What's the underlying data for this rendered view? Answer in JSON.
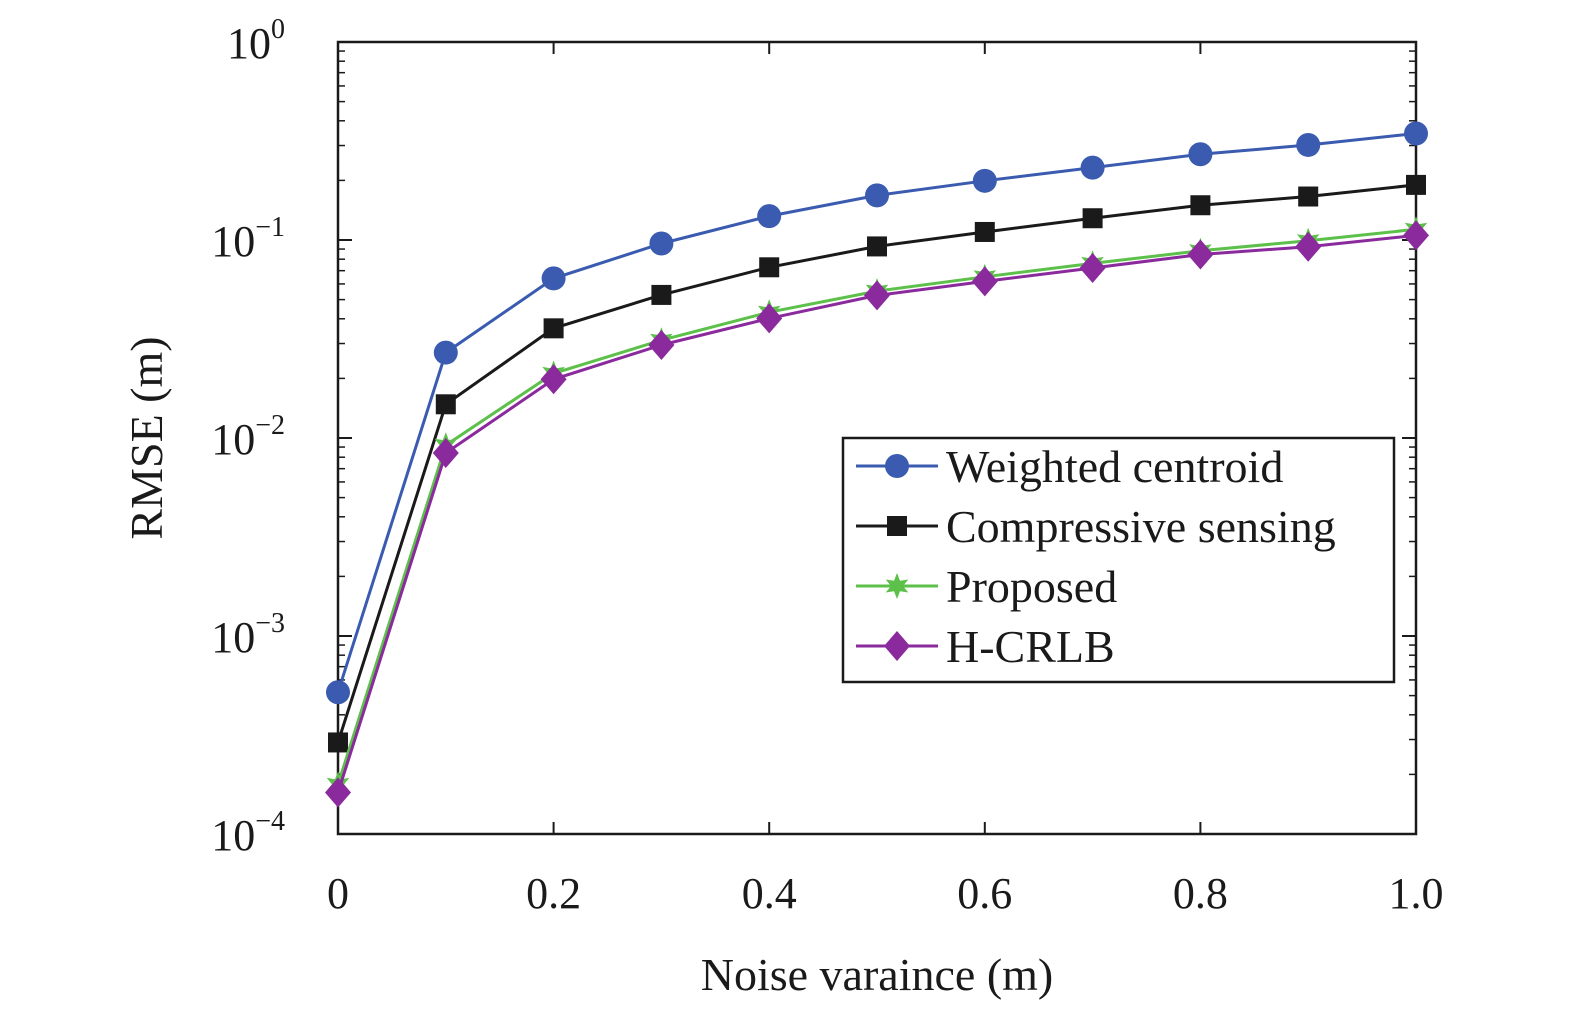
{
  "chart_data": {
    "type": "line",
    "xlabel": "Noise varaince (m)",
    "ylabel": "RMSE (m)",
    "xlim": [
      0,
      1.0
    ],
    "ylim": [
      0.0001,
      1
    ],
    "yscale": "log",
    "x": [
      0,
      0.1,
      0.2,
      0.3,
      0.4,
      0.5,
      0.6,
      0.7,
      0.8,
      0.9,
      1.0
    ],
    "x_tick_labels": [
      "0",
      "0.2",
      "0.4",
      "0.6",
      "0.8",
      "1.0"
    ],
    "y_tick_labels": [
      {
        "base": "10",
        "exp": "0"
      },
      {
        "base": "10",
        "exp": "−1"
      },
      {
        "base": "10",
        "exp": "−2"
      },
      {
        "base": "10",
        "exp": "−3"
      },
      {
        "base": "10",
        "exp": "−4"
      }
    ],
    "legend_position": "center-right",
    "grid": false,
    "series": [
      {
        "name": "Weighted centroid",
        "color": "#3a5bb0",
        "marker": "circle",
        "values": [
          0.00052,
          0.027,
          0.064,
          0.096,
          0.132,
          0.168,
          0.199,
          0.232,
          0.271,
          0.302,
          0.345
        ]
      },
      {
        "name": "Compressive sensing",
        "color": "#1a1a1a",
        "marker": "square",
        "values": [
          0.00029,
          0.0148,
          0.0358,
          0.0528,
          0.0728,
          0.0928,
          0.1098,
          0.1288,
          0.1498,
          0.1658,
          0.1898
        ]
      },
      {
        "name": "Proposed",
        "color": "#5cc04a",
        "marker": "star",
        "values": [
          0.000178,
          0.0092,
          0.0212,
          0.0312,
          0.0432,
          0.0552,
          0.0652,
          0.0762,
          0.0882,
          0.0992,
          0.1132
        ]
      },
      {
        "name": "H-CRLB",
        "color": "#8a2a9c",
        "marker": "diamond",
        "values": [
          0.000162,
          0.0084,
          0.0198,
          0.0295,
          0.0402,
          0.0525,
          0.0618,
          0.0722,
          0.0845,
          0.0925,
          0.1055
        ]
      }
    ]
  }
}
